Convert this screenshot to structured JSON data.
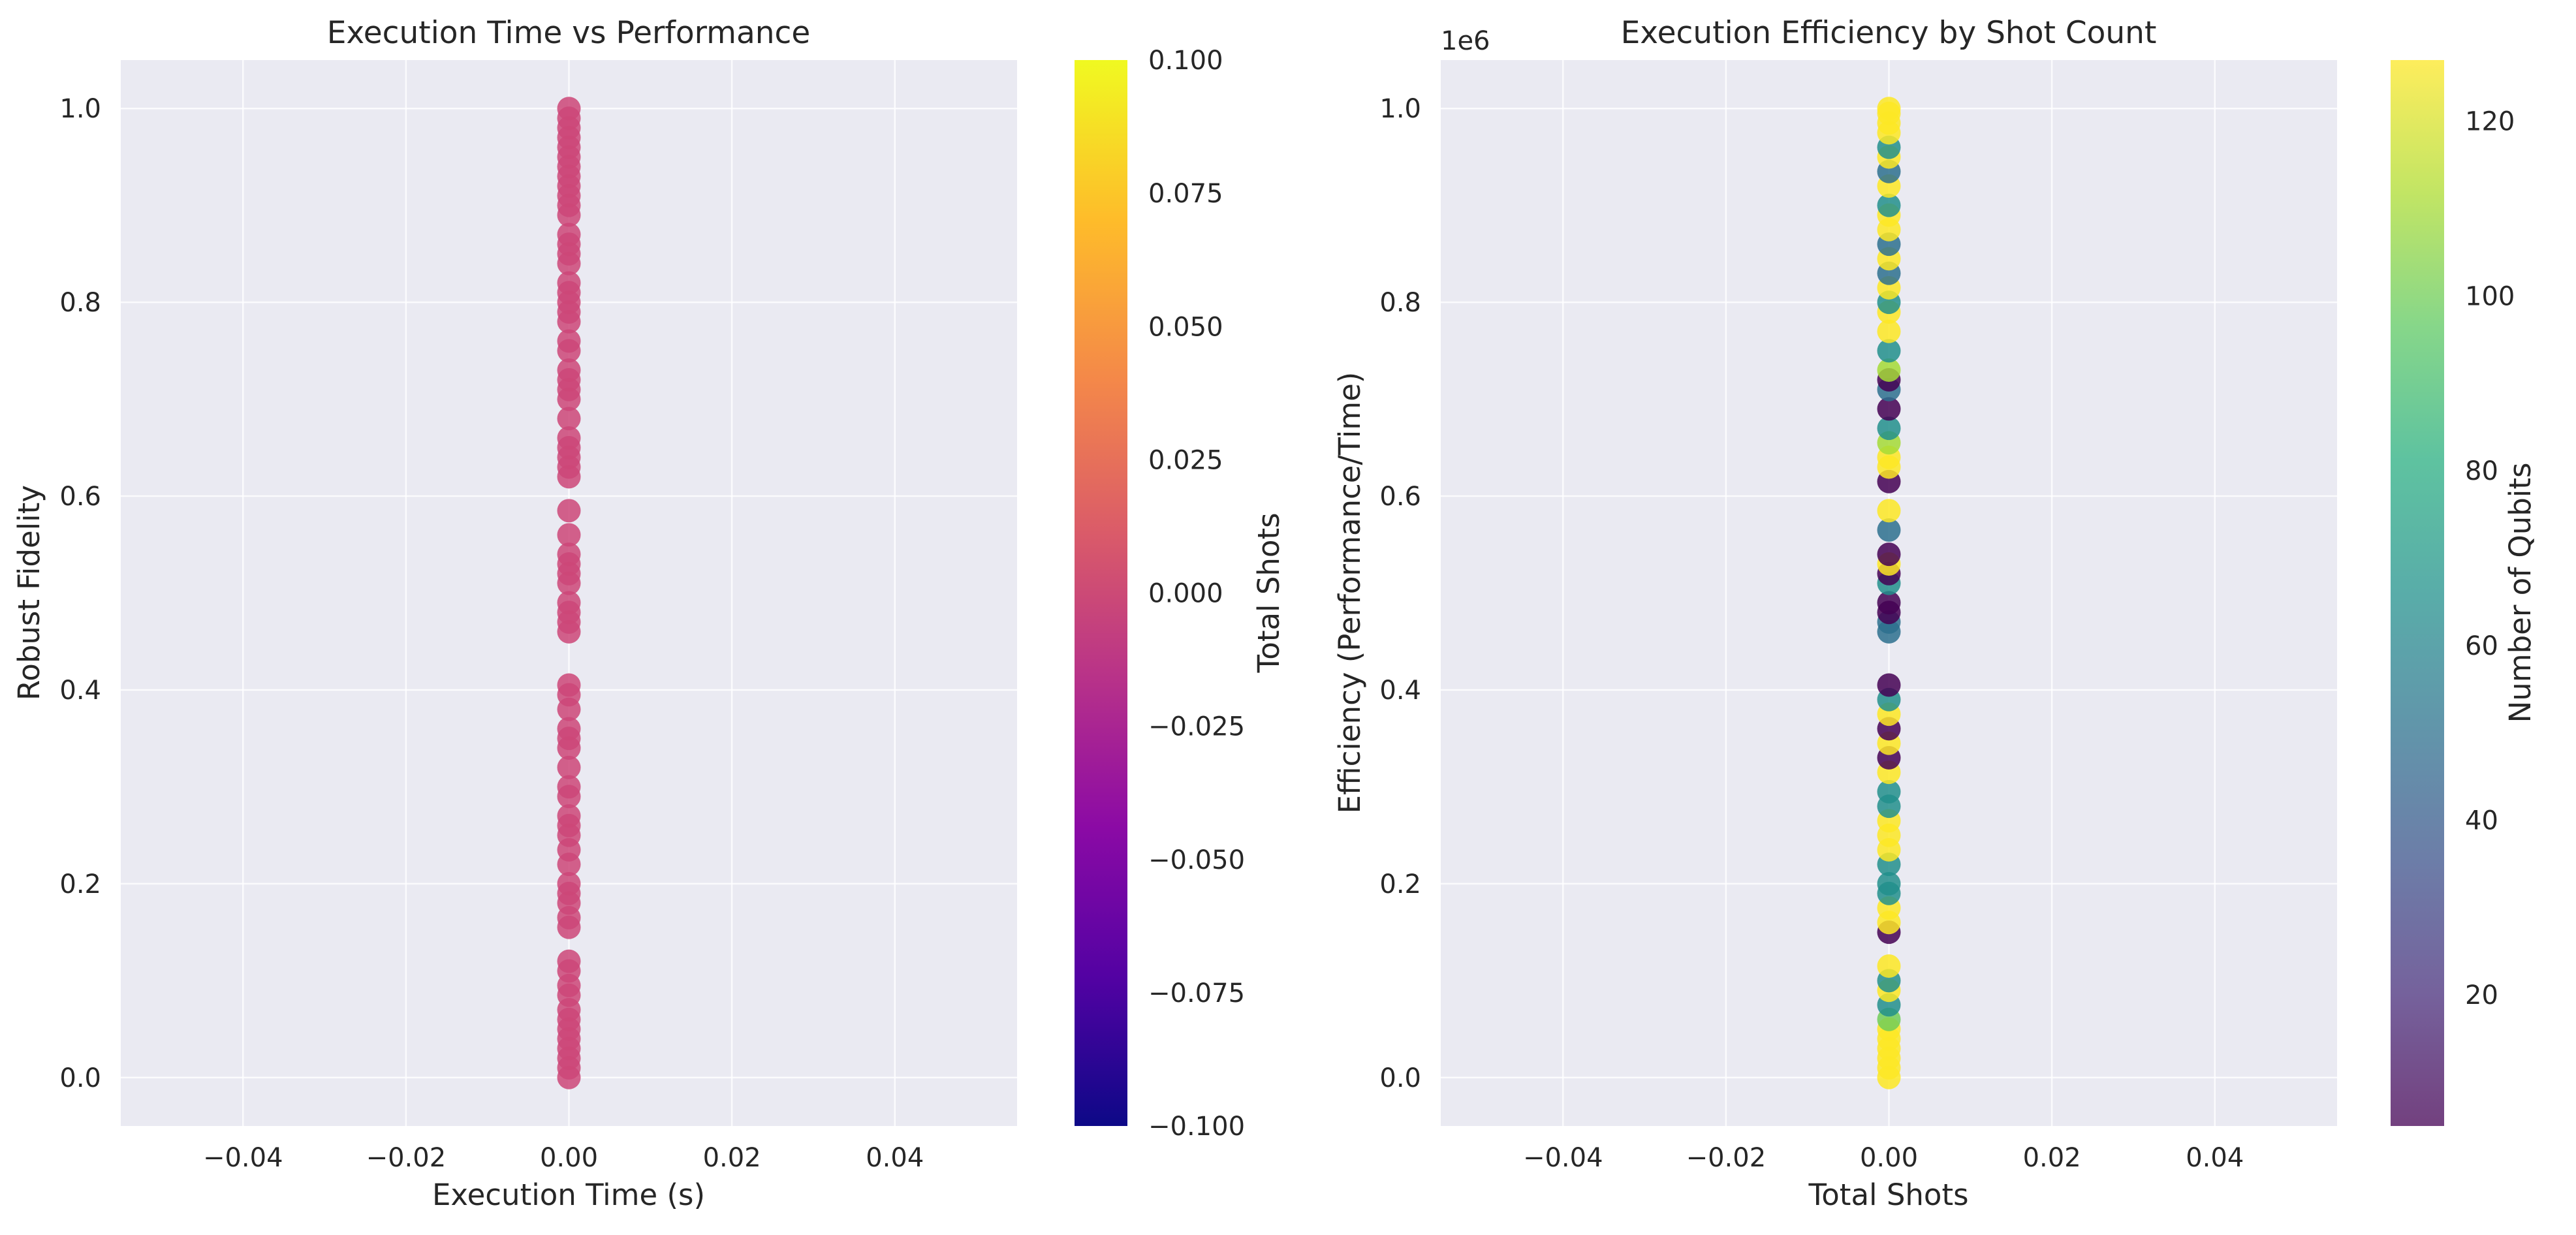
{
  "chart_data": [
    {
      "type": "scatter",
      "title": "Execution Time vs Performance",
      "xlabel": "Execution Time (s)",
      "ylabel": "Robust Fidelity",
      "xlim": [
        -0.055,
        0.055
      ],
      "ylim": [
        -0.05,
        1.05
      ],
      "xticks": [
        -0.04,
        -0.02,
        0.0,
        0.02,
        0.04
      ],
      "xtick_labels": [
        "−0.04",
        "−0.02",
        "0.00",
        "0.02",
        "0.04"
      ],
      "yticks": [
        0.0,
        0.2,
        0.4,
        0.6,
        0.8,
        1.0
      ],
      "ytick_labels": [
        "0.0",
        "0.2",
        "0.4",
        "0.6",
        "0.8",
        "1.0"
      ],
      "grid": true,
      "point_color": "#cc4778",
      "colorbar": {
        "label": "Total Shots",
        "colormap": "plasma",
        "range": [
          -0.1,
          0.1
        ],
        "ticks": [
          -0.1,
          -0.075,
          -0.05,
          -0.025,
          0.0,
          0.025,
          0.05,
          0.075,
          0.1
        ],
        "tick_labels": [
          "−0.100",
          "−0.075",
          "−0.050",
          "−0.025",
          "0.000",
          "0.025",
          "0.050",
          "0.075",
          "0.100"
        ]
      },
      "points": [
        {
          "x": 0,
          "y": 0.0
        },
        {
          "x": 0,
          "y": 0.01
        },
        {
          "x": 0,
          "y": 0.02
        },
        {
          "x": 0,
          "y": 0.03
        },
        {
          "x": 0,
          "y": 0.04
        },
        {
          "x": 0,
          "y": 0.05
        },
        {
          "x": 0,
          "y": 0.06
        },
        {
          "x": 0,
          "y": 0.07
        },
        {
          "x": 0,
          "y": 0.085
        },
        {
          "x": 0,
          "y": 0.095
        },
        {
          "x": 0,
          "y": 0.11
        },
        {
          "x": 0,
          "y": 0.12
        },
        {
          "x": 0,
          "y": 0.155
        },
        {
          "x": 0,
          "y": 0.165
        },
        {
          "x": 0,
          "y": 0.18
        },
        {
          "x": 0,
          "y": 0.19
        },
        {
          "x": 0,
          "y": 0.2
        },
        {
          "x": 0,
          "y": 0.22
        },
        {
          "x": 0,
          "y": 0.235
        },
        {
          "x": 0,
          "y": 0.25
        },
        {
          "x": 0,
          "y": 0.26
        },
        {
          "x": 0,
          "y": 0.27
        },
        {
          "x": 0,
          "y": 0.29
        },
        {
          "x": 0,
          "y": 0.3
        },
        {
          "x": 0,
          "y": 0.32
        },
        {
          "x": 0,
          "y": 0.34
        },
        {
          "x": 0,
          "y": 0.35
        },
        {
          "x": 0,
          "y": 0.36
        },
        {
          "x": 0,
          "y": 0.38
        },
        {
          "x": 0,
          "y": 0.395
        },
        {
          "x": 0,
          "y": 0.405
        },
        {
          "x": 0,
          "y": 0.46
        },
        {
          "x": 0,
          "y": 0.47
        },
        {
          "x": 0,
          "y": 0.48
        },
        {
          "x": 0,
          "y": 0.49
        },
        {
          "x": 0,
          "y": 0.51
        },
        {
          "x": 0,
          "y": 0.52
        },
        {
          "x": 0,
          "y": 0.53
        },
        {
          "x": 0,
          "y": 0.54
        },
        {
          "x": 0,
          "y": 0.56
        },
        {
          "x": 0,
          "y": 0.585
        },
        {
          "x": 0,
          "y": 0.62
        },
        {
          "x": 0,
          "y": 0.63
        },
        {
          "x": 0,
          "y": 0.64
        },
        {
          "x": 0,
          "y": 0.65
        },
        {
          "x": 0,
          "y": 0.66
        },
        {
          "x": 0,
          "y": 0.68
        },
        {
          "x": 0,
          "y": 0.7
        },
        {
          "x": 0,
          "y": 0.71
        },
        {
          "x": 0,
          "y": 0.72
        },
        {
          "x": 0,
          "y": 0.73
        },
        {
          "x": 0,
          "y": 0.75
        },
        {
          "x": 0,
          "y": 0.76
        },
        {
          "x": 0,
          "y": 0.78
        },
        {
          "x": 0,
          "y": 0.79
        },
        {
          "x": 0,
          "y": 0.8
        },
        {
          "x": 0,
          "y": 0.81
        },
        {
          "x": 0,
          "y": 0.82
        },
        {
          "x": 0,
          "y": 0.84
        },
        {
          "x": 0,
          "y": 0.85
        },
        {
          "x": 0,
          "y": 0.86
        },
        {
          "x": 0,
          "y": 0.87
        },
        {
          "x": 0,
          "y": 0.89
        },
        {
          "x": 0,
          "y": 0.9
        },
        {
          "x": 0,
          "y": 0.91
        },
        {
          "x": 0,
          "y": 0.92
        },
        {
          "x": 0,
          "y": 0.93
        },
        {
          "x": 0,
          "y": 0.94
        },
        {
          "x": 0,
          "y": 0.95
        },
        {
          "x": 0,
          "y": 0.96
        },
        {
          "x": 0,
          "y": 0.97
        },
        {
          "x": 0,
          "y": 0.98
        },
        {
          "x": 0,
          "y": 0.99
        },
        {
          "x": 0,
          "y": 1.0
        }
      ]
    },
    {
      "type": "scatter",
      "title": "Execution Efficiency by Shot Count",
      "xlabel": "Total Shots",
      "ylabel": "Efficiency (Performance/Time)",
      "xlim": [
        -0.055,
        0.055
      ],
      "ylim": [
        -0.05,
        1.05
      ],
      "y_offset_label": "1e6",
      "xticks": [
        -0.04,
        -0.02,
        0.0,
        0.02,
        0.04
      ],
      "xtick_labels": [
        "−0.04",
        "−0.02",
        "0.00",
        "0.02",
        "0.04"
      ],
      "yticks": [
        0.0,
        0.2,
        0.4,
        0.6,
        0.8,
        1.0
      ],
      "ytick_labels": [
        "0.0",
        "0.2",
        "0.4",
        "0.6",
        "0.8",
        "1.0"
      ],
      "grid": true,
      "colorbar": {
        "label": "Number of Qubits",
        "colormap": "viridis",
        "range": [
          5,
          127
        ],
        "ticks": [
          20,
          40,
          60,
          80,
          100,
          120
        ],
        "tick_labels": [
          "20",
          "40",
          "60",
          "80",
          "100",
          "120"
        ]
      },
      "points": [
        {
          "x": 0,
          "y": 0.0,
          "c": 127
        },
        {
          "x": 0,
          "y": 0.01,
          "c": 127
        },
        {
          "x": 0,
          "y": 0.02,
          "c": 127
        },
        {
          "x": 0,
          "y": 0.03,
          "c": 127
        },
        {
          "x": 0,
          "y": 0.04,
          "c": 127
        },
        {
          "x": 0,
          "y": 0.05,
          "c": 127
        },
        {
          "x": 0,
          "y": 0.06,
          "c": 100
        },
        {
          "x": 0,
          "y": 0.075,
          "c": 65
        },
        {
          "x": 0,
          "y": 0.09,
          "c": 127
        },
        {
          "x": 0,
          "y": 0.1,
          "c": 65
        },
        {
          "x": 0,
          "y": 0.115,
          "c": 127
        },
        {
          "x": 0,
          "y": 0.15,
          "c": 5
        },
        {
          "x": 0,
          "y": 0.16,
          "c": 127
        },
        {
          "x": 0,
          "y": 0.175,
          "c": 127
        },
        {
          "x": 0,
          "y": 0.19,
          "c": 65
        },
        {
          "x": 0,
          "y": 0.2,
          "c": 65
        },
        {
          "x": 0,
          "y": 0.22,
          "c": 65
        },
        {
          "x": 0,
          "y": 0.235,
          "c": 127
        },
        {
          "x": 0,
          "y": 0.25,
          "c": 127
        },
        {
          "x": 0,
          "y": 0.265,
          "c": 127
        },
        {
          "x": 0,
          "y": 0.28,
          "c": 65
        },
        {
          "x": 0,
          "y": 0.295,
          "c": 65
        },
        {
          "x": 0,
          "y": 0.315,
          "c": 127
        },
        {
          "x": 0,
          "y": 0.33,
          "c": 5
        },
        {
          "x": 0,
          "y": 0.345,
          "c": 127
        },
        {
          "x": 0,
          "y": 0.36,
          "c": 5
        },
        {
          "x": 0,
          "y": 0.375,
          "c": 127
        },
        {
          "x": 0,
          "y": 0.39,
          "c": 65
        },
        {
          "x": 0,
          "y": 0.405,
          "c": 5
        },
        {
          "x": 0,
          "y": 0.46,
          "c": 50
        },
        {
          "x": 0,
          "y": 0.47,
          "c": 50
        },
        {
          "x": 0,
          "y": 0.48,
          "c": 5
        },
        {
          "x": 0,
          "y": 0.49,
          "c": 5
        },
        {
          "x": 0,
          "y": 0.51,
          "c": 65
        },
        {
          "x": 0,
          "y": 0.52,
          "c": 5
        },
        {
          "x": 0,
          "y": 0.53,
          "c": 127
        },
        {
          "x": 0,
          "y": 0.54,
          "c": 5
        },
        {
          "x": 0,
          "y": 0.565,
          "c": 50
        },
        {
          "x": 0,
          "y": 0.585,
          "c": 127
        },
        {
          "x": 0,
          "y": 0.615,
          "c": 5
        },
        {
          "x": 0,
          "y": 0.63,
          "c": 127
        },
        {
          "x": 0,
          "y": 0.64,
          "c": 127
        },
        {
          "x": 0,
          "y": 0.655,
          "c": 110
        },
        {
          "x": 0,
          "y": 0.67,
          "c": 65
        },
        {
          "x": 0,
          "y": 0.69,
          "c": 5
        },
        {
          "x": 0,
          "y": 0.71,
          "c": 50
        },
        {
          "x": 0,
          "y": 0.72,
          "c": 5
        },
        {
          "x": 0,
          "y": 0.73,
          "c": 110
        },
        {
          "x": 0,
          "y": 0.75,
          "c": 65
        },
        {
          "x": 0,
          "y": 0.77,
          "c": 127
        },
        {
          "x": 0,
          "y": 0.79,
          "c": 127
        },
        {
          "x": 0,
          "y": 0.8,
          "c": 65
        },
        {
          "x": 0,
          "y": 0.815,
          "c": 127
        },
        {
          "x": 0,
          "y": 0.83,
          "c": 50
        },
        {
          "x": 0,
          "y": 0.845,
          "c": 127
        },
        {
          "x": 0,
          "y": 0.86,
          "c": 50
        },
        {
          "x": 0,
          "y": 0.875,
          "c": 127
        },
        {
          "x": 0,
          "y": 0.89,
          "c": 127
        },
        {
          "x": 0,
          "y": 0.9,
          "c": 65
        },
        {
          "x": 0,
          "y": 0.92,
          "c": 127
        },
        {
          "x": 0,
          "y": 0.935,
          "c": 50
        },
        {
          "x": 0,
          "y": 0.95,
          "c": 127
        },
        {
          "x": 0,
          "y": 0.96,
          "c": 65
        },
        {
          "x": 0,
          "y": 0.975,
          "c": 127
        },
        {
          "x": 0,
          "y": 0.985,
          "c": 127
        },
        {
          "x": 0,
          "y": 0.995,
          "c": 127
        },
        {
          "x": 0,
          "y": 1.0,
          "c": 127
        }
      ]
    }
  ]
}
